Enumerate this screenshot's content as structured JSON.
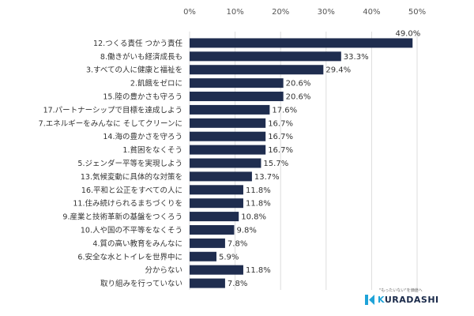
{
  "chart_data": {
    "type": "bar",
    "orientation": "horizontal",
    "categories": [
      "12.つくる責任 つかう責任",
      "8.働きがいも経済成長も",
      "3.すべての人に健康と福祉を",
      "2.飢餓をゼロに",
      "15.陸の豊かさも守ろう",
      "17.パートナーシップで目標を達成しよう",
      "7.エネルギーをみんなに そしてクリーンに",
      "14.海の豊かさを守ろう",
      "1.貧困をなくそう",
      "5.ジェンダー平等を実現しよう",
      "13.気候変動に具体的な対策を",
      "16.平和と公正をすべての人に",
      "11.住み続けられるまちづくりを",
      "9.産業と技術革新の基盤をつくろう",
      "10.人や国の不平等をなくそう",
      "4.質の高い教育をみんなに",
      "6.安全な水とトイレを世界中に",
      "分からない",
      "取り組みを行っていない"
    ],
    "values": [
      49.0,
      33.3,
      29.4,
      20.6,
      20.6,
      17.6,
      16.7,
      16.7,
      16.7,
      15.7,
      13.7,
      11.8,
      11.8,
      10.8,
      9.8,
      7.8,
      5.9,
      11.8,
      7.8
    ],
    "value_labels": [
      "49.0%",
      "33.3%",
      "29.4%",
      "20.6%",
      "20.6%",
      "17.6%",
      "16.7%",
      "16.7%",
      "16.7%",
      "15.7%",
      "13.7%",
      "11.8%",
      "11.8%",
      "10.8%",
      "9.8%",
      "7.8%",
      "5.9%",
      "11.8%",
      "7.8%"
    ],
    "x_ticks": [
      0,
      10,
      20,
      30,
      40,
      50
    ],
    "x_tick_labels": [
      "0%",
      "10%",
      "20%",
      "30%",
      "40%",
      "50%"
    ],
    "xlim": [
      0,
      50
    ],
    "axis_position": "top",
    "grid": true,
    "bar_color": "#1f2d4f",
    "grid_color": "#dddddd"
  },
  "logo": {
    "tagline": "\"もったいない\"を価値へ",
    "name_accent": "K",
    "name_rest": "URADASHI",
    "mark_color": "#1fa3d8",
    "text_color": "#1a2a4a"
  }
}
